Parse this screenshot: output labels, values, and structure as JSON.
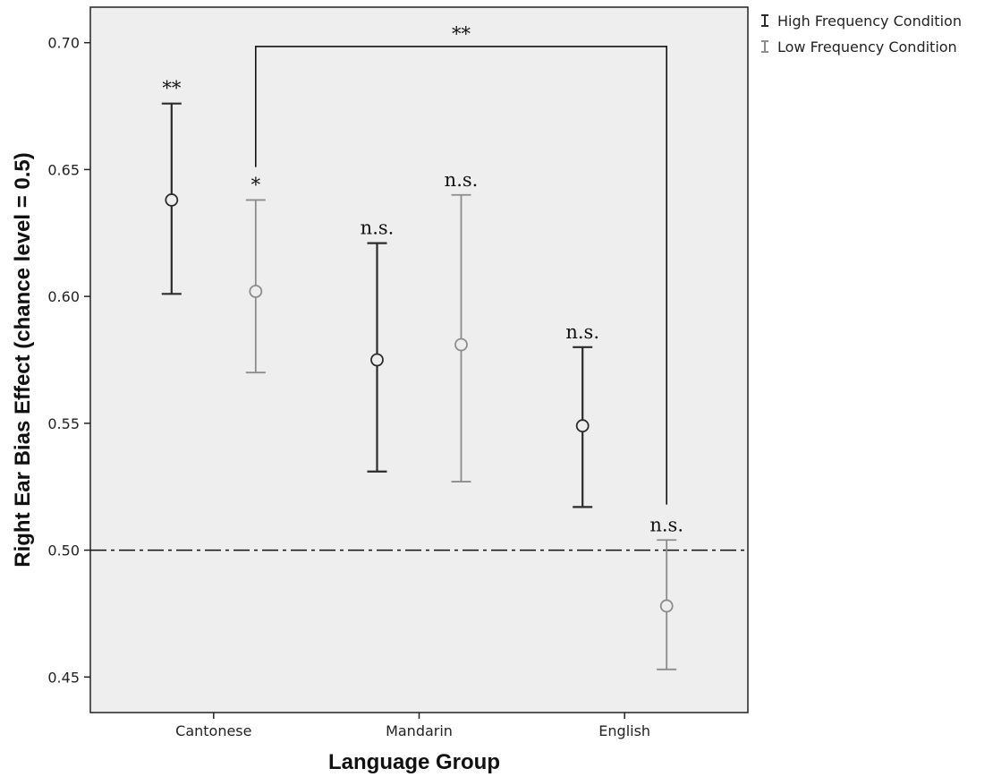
{
  "chart_data": {
    "type": "error-bar",
    "xlabel": "Language Group",
    "ylabel": "Right Ear Bias Effect (chance level = 0.5)",
    "ylim": [
      0.436,
      0.714
    ],
    "yticks": [
      "0.45",
      "0.50",
      "0.55",
      "0.60",
      "0.65",
      "0.70"
    ],
    "categories": [
      "Cantonese",
      "Mandarin",
      "English"
    ],
    "series": [
      {
        "name": "High Frequency Condition",
        "color": "#2b2b2b",
        "mean": [
          0.638,
          0.575,
          0.549
        ],
        "lower": [
          0.601,
          0.531,
          0.517
        ],
        "upper": [
          0.676,
          0.621,
          0.58
        ],
        "significance": [
          "**",
          "n.s.",
          "n.s."
        ]
      },
      {
        "name": "Low Frequency Condition",
        "color": "#8c8c8c",
        "mean": [
          0.602,
          0.581,
          0.478
        ],
        "lower": [
          0.57,
          0.527,
          0.453
        ],
        "upper": [
          0.638,
          0.64,
          0.504
        ],
        "significance": [
          "*",
          "n.s.",
          "n.s."
        ]
      }
    ],
    "reference_line": 0.5,
    "comparison": {
      "label": "**",
      "from": "Cantonese Low Frequency",
      "to": "English Low Frequency"
    },
    "grid": false,
    "legend_position": "top-right outside"
  }
}
